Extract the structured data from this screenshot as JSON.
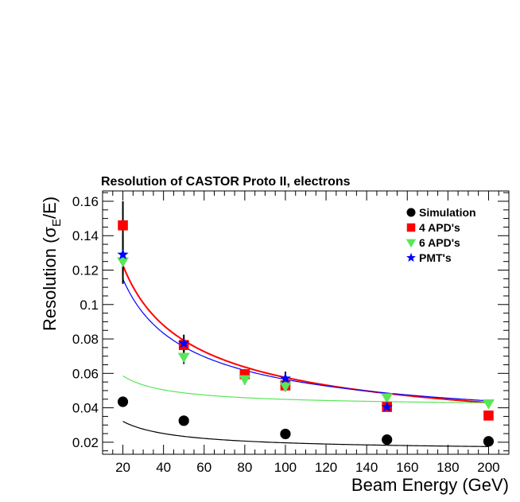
{
  "chart_data": {
    "type": "scatter",
    "title": "Resolution of CASTOR Proto II, electrons",
    "xlabel": "Beam Energy (GeV)",
    "ylabel": {
      "prefix": "Resolution (",
      "sigma": "σ",
      "subscript": "E",
      "suffix": "/E)"
    },
    "xlim": [
      10,
      210
    ],
    "ylim": [
      0.013,
      0.166
    ],
    "x_ticks": [
      20,
      40,
      60,
      80,
      100,
      120,
      140,
      160,
      180,
      200
    ],
    "x_tick_labels": [
      "20",
      "40",
      "60",
      "80",
      "100",
      "120",
      "140",
      "160",
      "180",
      "200"
    ],
    "y_ticks": [
      0.02,
      0.04,
      0.06,
      0.08,
      0.1,
      0.12,
      0.14,
      0.16
    ],
    "y_tick_labels": [
      "0.02",
      "0.04",
      "0.06",
      "0.08",
      "0.1",
      "0.12",
      "0.14",
      "0.16"
    ],
    "legend_position": "top-right",
    "series": [
      {
        "name": "Simulation",
        "marker": "circle",
        "color": "#000000",
        "x": [
          20,
          50,
          100,
          150,
          200
        ],
        "y": [
          0.0435,
          0.0325,
          0.0248,
          0.0215,
          0.0205
        ],
        "yerr": [
          0.002,
          0.002,
          0.0008,
          0.0005,
          0.0005
        ],
        "fit": {
          "color": "#000000",
          "a": 0.015,
          "b": 0.127,
          "c": 0.0
        }
      },
      {
        "name": "4 APD's",
        "marker": "square",
        "color": "#ff0000",
        "x": [
          20,
          50,
          80,
          100,
          150,
          200
        ],
        "y": [
          0.146,
          0.0765,
          0.0595,
          0.053,
          0.0405,
          0.0355
        ],
        "yerr": [
          0.014,
          0.004,
          0.003,
          0.003,
          0.002,
          0.0015
        ],
        "fit": {
          "color": "#ff0000",
          "a": 0.0194,
          "b": 0.5425,
          "c": 0.0
        }
      },
      {
        "name": "6 APD's",
        "marker": "triangle-down",
        "color": "#5ae65a",
        "x": [
          20,
          50,
          80,
          100,
          150,
          200
        ],
        "y": [
          0.125,
          0.0695,
          0.0565,
          0.0525,
          0.046,
          0.0425
        ],
        "yerr": [
          0.013,
          0.004,
          0.003,
          0.003,
          0.002,
          0.0015
        ],
        "fit": {
          "color": "#5ae65a",
          "a": 0.0408,
          "b": 0.1875,
          "c": 0.045
        }
      },
      {
        "name": "PMT's",
        "marker": "star",
        "color": "#0000ff",
        "x": [
          20,
          50,
          100,
          150
        ],
        "y": [
          0.129,
          0.0775,
          0.057,
          0.0405
        ],
        "yerr": [
          0.012,
          0.005,
          0.004,
          0.002
        ],
        "fit": {
          "color": "#0000ff",
          "a": 0.0263,
          "b": 0.5,
          "c": 0.02
        }
      }
    ]
  }
}
